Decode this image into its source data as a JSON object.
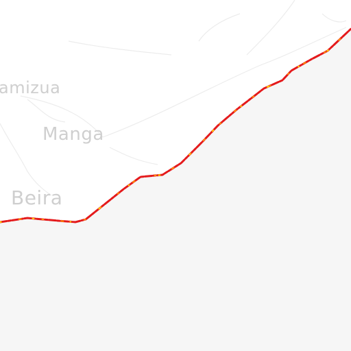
{
  "map": {
    "places": [
      {
        "name": "amizua"
      },
      {
        "name": "Manga"
      },
      {
        "name": "Beira"
      }
    ],
    "colors": {
      "water": "#f6f6f6",
      "land": "#ffffff",
      "land_lines": "#e6e6e6",
      "label": "#cfcfcf",
      "coast_red": "#e41a1c",
      "coast_orange": "#ff8c00",
      "coast_yellow": "#ffd700"
    }
  }
}
